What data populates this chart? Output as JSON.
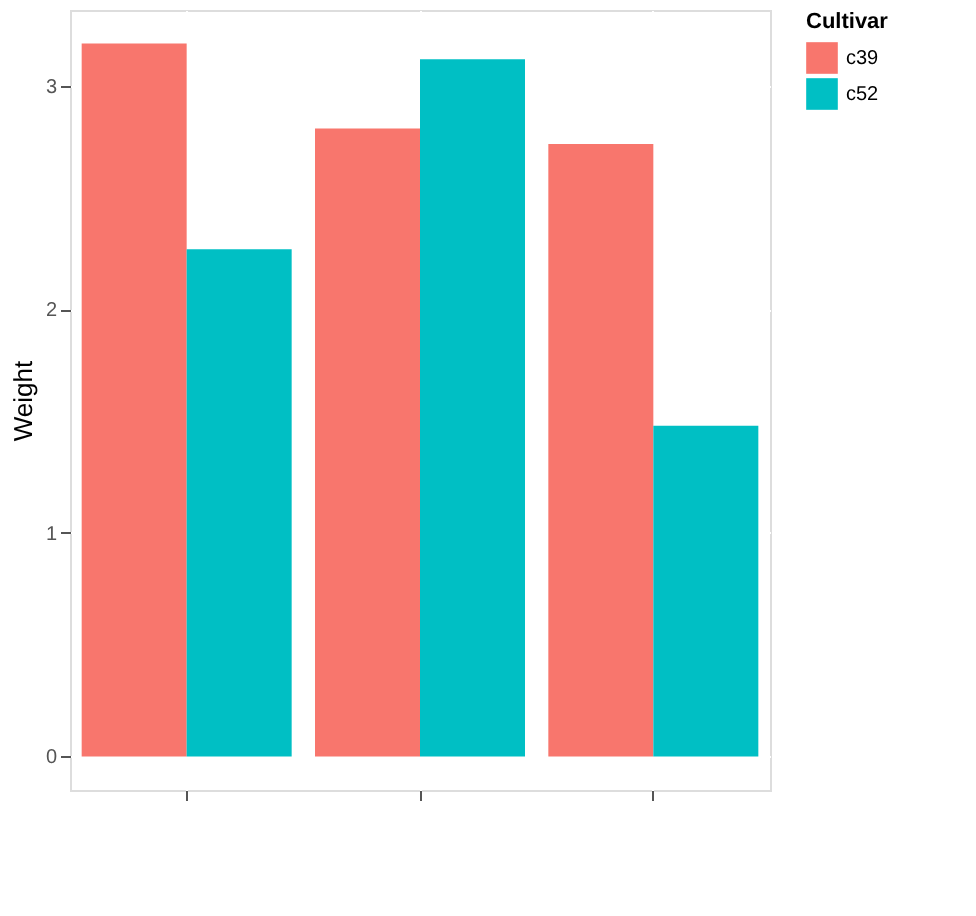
{
  "chart_data": {
    "type": "bar",
    "ylabel": "Weight",
    "legend_title": "Cultivar",
    "categories": [
      null,
      null,
      null
    ],
    "series": [
      {
        "name": "c39",
        "color": "#f8766d",
        "values": [
          3.19,
          2.81,
          2.74
        ]
      },
      {
        "name": "c52",
        "color": "#00bfc4",
        "values": [
          2.27,
          3.12,
          1.48
        ]
      }
    ],
    "ylim": [
      -0.15,
      3.34
    ],
    "yticks": [
      0,
      1,
      2,
      3
    ],
    "grid": true,
    "legend": "right",
    "tick_labels": "y"
  }
}
